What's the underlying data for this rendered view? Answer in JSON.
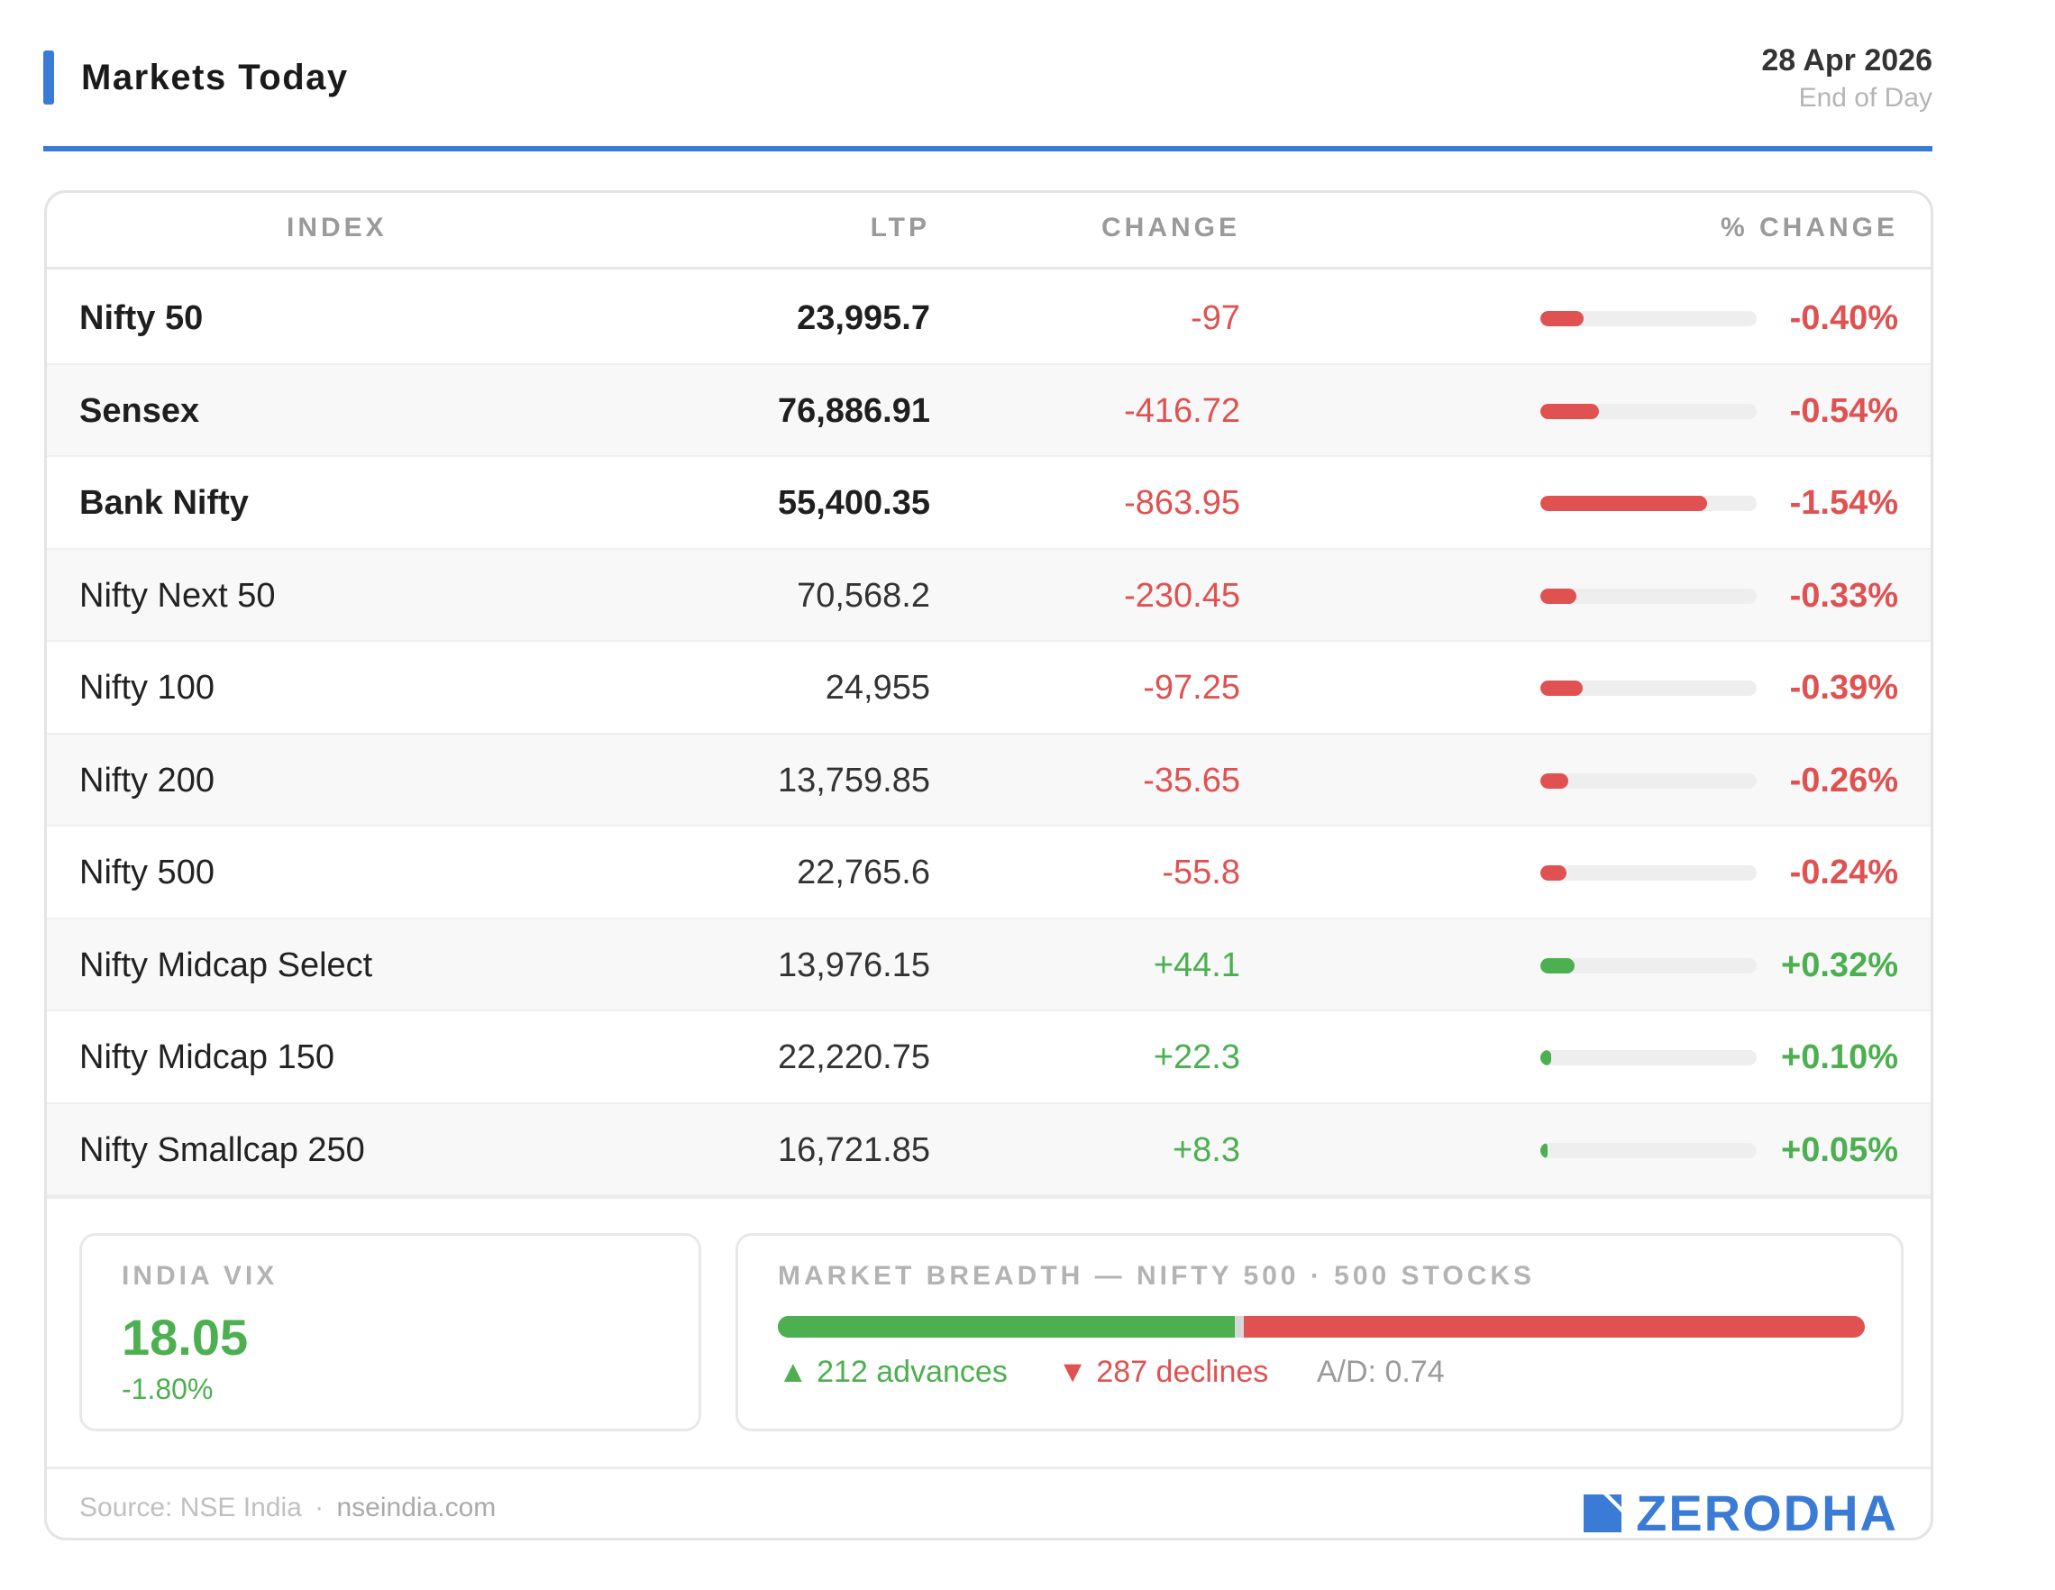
{
  "header": {
    "title": "Markets Today",
    "date": "28 Apr 2026",
    "subtitle": "End of Day"
  },
  "table": {
    "columns": {
      "index": "INDEX",
      "ltp": "LTP",
      "change": "CHANGE",
      "pct_change": "% CHANGE"
    },
    "rows": [
      {
        "name": "Nifty 50",
        "ltp": "23,995.7",
        "change": "-97",
        "pct": "-0.40%",
        "pct_value": -0.4,
        "direction": "neg",
        "major": true
      },
      {
        "name": "Sensex",
        "ltp": "76,886.91",
        "change": "-416.72",
        "pct": "-0.54%",
        "pct_value": -0.54,
        "direction": "neg",
        "major": true
      },
      {
        "name": "Bank Nifty",
        "ltp": "55,400.35",
        "change": "-863.95",
        "pct": "-1.54%",
        "pct_value": -1.54,
        "direction": "neg",
        "major": true
      },
      {
        "name": "Nifty Next 50",
        "ltp": "70,568.2",
        "change": "-230.45",
        "pct": "-0.33%",
        "pct_value": -0.33,
        "direction": "neg",
        "major": false
      },
      {
        "name": "Nifty 100",
        "ltp": "24,955",
        "change": "-97.25",
        "pct": "-0.39%",
        "pct_value": -0.39,
        "direction": "neg",
        "major": false
      },
      {
        "name": "Nifty 200",
        "ltp": "13,759.85",
        "change": "-35.65",
        "pct": "-0.26%",
        "pct_value": -0.26,
        "direction": "neg",
        "major": false
      },
      {
        "name": "Nifty 500",
        "ltp": "22,765.6",
        "change": "-55.8",
        "pct": "-0.24%",
        "pct_value": -0.24,
        "direction": "neg",
        "major": false
      },
      {
        "name": "Nifty Midcap Select",
        "ltp": "13,976.15",
        "change": "+44.1",
        "pct": "+0.32%",
        "pct_value": 0.32,
        "direction": "pos",
        "major": false
      },
      {
        "name": "Nifty Midcap 150",
        "ltp": "22,220.75",
        "change": "+22.3",
        "pct": "+0.10%",
        "pct_value": 0.1,
        "direction": "pos",
        "major": false
      },
      {
        "name": "Nifty Smallcap 250",
        "ltp": "16,721.85",
        "change": "+8.3",
        "pct": "+0.05%",
        "pct_value": 0.05,
        "direction": "pos",
        "major": false
      }
    ]
  },
  "vix": {
    "label": "INDIA VIX",
    "value": "18.05",
    "change": "-1.80%"
  },
  "breadth": {
    "label": "MARKET BREADTH — NIFTY 500 · 500 STOCKS",
    "advances_count": 212,
    "declines_count": 287,
    "advances_text": "▲ 212 advances",
    "declines_text": "▼ 287 declines",
    "ad_ratio": "A/D: 0.74"
  },
  "footer": {
    "source_label": "Source: NSE India",
    "separator": "·",
    "source_domain": "nseindia.com",
    "brand": "ZERODHA"
  },
  "colors": {
    "accent": "#3a7bd5",
    "negative": "#e05252",
    "positive": "#4caf50"
  }
}
